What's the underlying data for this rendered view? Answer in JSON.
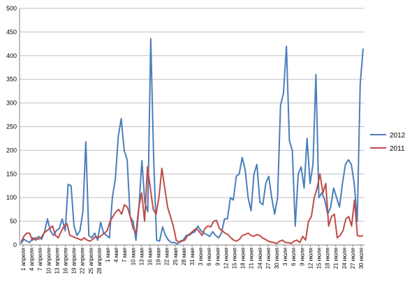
{
  "chart_data": {
    "type": "line",
    "title": "",
    "xlabel": "",
    "ylabel": "",
    "ylim": [
      0,
      500
    ],
    "yticks": [
      0,
      50,
      100,
      150,
      200,
      250,
      300,
      350,
      400,
      450,
      500
    ],
    "grid": true,
    "legend_position": "right",
    "x_tick_labels": [
      "1 апреля",
      "4 апреля",
      "7 апреля",
      "10 апреля",
      "13 апреля",
      "16 апреля",
      "19 апреля",
      "22 апреля",
      "25 апреля",
      "28 апреля",
      "1 мая",
      "4 мая",
      "7 мая",
      "10 мая",
      "13 мая",
      "16 мая",
      "19 мая",
      "22 мая",
      "25 мая",
      "28 мая",
      "31 мая",
      "3 июня",
      "6 июня",
      "9 июня",
      "12 июня",
      "15 июня",
      "18 июня",
      "21 июня",
      "24 июня",
      "27 июня",
      "30 июня",
      "3 июля",
      "6 июля",
      "9 июля",
      "12 июля",
      "15 июля",
      "18 июля",
      "21 июля",
      "24 июля",
      "27 июля",
      "30 июля"
    ],
    "series": [
      {
        "name": "2012",
        "color": "#4a7ebb",
        "values": [
          3,
          12,
          8,
          5,
          15,
          10,
          18,
          12,
          28,
          55,
          30,
          20,
          30,
          35,
          55,
          30,
          128,
          125,
          40,
          20,
          30,
          70,
          218,
          20,
          15,
          25,
          10,
          48,
          25,
          20,
          15,
          100,
          140,
          230,
          267,
          200,
          180,
          60,
          50,
          10,
          80,
          178,
          90,
          70,
          436,
          180,
          10,
          8,
          38,
          20,
          10,
          5,
          5,
          2,
          8,
          10,
          20,
          20,
          25,
          28,
          40,
          30,
          25,
          22,
          18,
          28,
          20,
          15,
          25,
          55,
          55,
          100,
          95,
          145,
          150,
          185,
          160,
          100,
          72,
          150,
          170,
          90,
          85,
          130,
          145,
          100,
          65,
          100,
          295,
          320,
          420,
          220,
          200,
          40,
          150,
          165,
          120,
          225,
          130,
          170,
          360,
          100,
          110,
          95,
          65,
          80,
          120,
          100,
          80,
          130,
          170,
          180,
          170,
          130,
          50,
          340,
          415
        ],
        "values_note": ""
      },
      {
        "name": "2011",
        "color": "#be4b48",
        "values": [
          5,
          18,
          25,
          25,
          10,
          15,
          12,
          15,
          25,
          30,
          35,
          40,
          20,
          15,
          28,
          40,
          45,
          20,
          18,
          15,
          13,
          10,
          15,
          10,
          8,
          12,
          18,
          15,
          20,
          25,
          30,
          50,
          60,
          70,
          75,
          65,
          85,
          80,
          60,
          35,
          25,
          80,
          110,
          50,
          165,
          120,
          75,
          65,
          100,
          162,
          120,
          80,
          60,
          40,
          10,
          5,
          8,
          10,
          20,
          25,
          30,
          35,
          28,
          20,
          35,
          40,
          38,
          50,
          52,
          35,
          30,
          25,
          22,
          15,
          10,
          8,
          12,
          20,
          22,
          25,
          20,
          18,
          22,
          20,
          15,
          12,
          8,
          6,
          5,
          3,
          8,
          10,
          5,
          5,
          3,
          8,
          10,
          5,
          18,
          10,
          50,
          60,
          100,
          120,
          150,
          110,
          130,
          40,
          60,
          65,
          15,
          20,
          30,
          55,
          60,
          40,
          95,
          20,
          18,
          20
        ],
        "values_note": ""
      }
    ]
  }
}
